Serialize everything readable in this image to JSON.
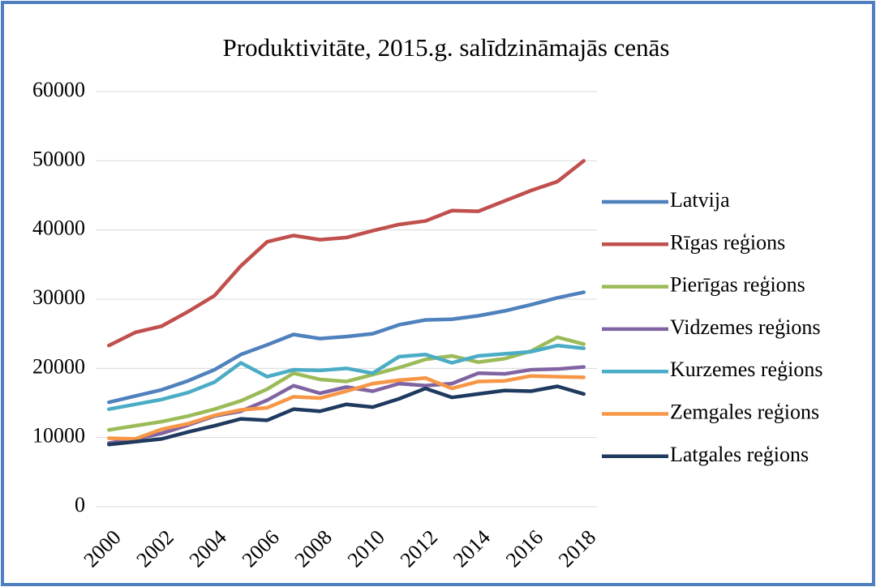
{
  "chart_data": {
    "type": "line",
    "title": "Produktivitāte, 2015.g. salīdzināmajās cenās",
    "categories": [
      "2000",
      null,
      "2002",
      null,
      "2004",
      null,
      "2006",
      null,
      "2008",
      null,
      "2010",
      null,
      "2012",
      null,
      "2014",
      null,
      "2016",
      null,
      "2018"
    ],
    "ylim": [
      0,
      60000
    ],
    "yticks": [
      0,
      10000,
      20000,
      30000,
      40000,
      50000,
      60000
    ],
    "grid": true,
    "legend": "right",
    "series": [
      {
        "name": "Latvija",
        "color": "#4f81bd",
        "values": [
          15100,
          16000,
          16900,
          18200,
          19800,
          22000,
          23400,
          24900,
          24300,
          24600,
          25000,
          26300,
          27000,
          27100,
          27600,
          28300,
          29200,
          30200,
          31000
        ]
      },
      {
        "name": "Rīgas reģions",
        "color": "#c0504d",
        "values": [
          23300,
          25200,
          26100,
          28200,
          30500,
          34800,
          38300,
          39200,
          38600,
          38900,
          39900,
          40800,
          41300,
          42800,
          42700,
          44200,
          45700,
          47000,
          50000
        ]
      },
      {
        "name": "Pierīgas reģions",
        "color": "#9bbb59",
        "values": [
          11100,
          11700,
          12300,
          13100,
          14100,
          15300,
          17000,
          19300,
          18400,
          18100,
          19100,
          20100,
          21300,
          21800,
          20900,
          21400,
          22500,
          24500,
          23500
        ]
      },
      {
        "name": "Vidzemes reģions",
        "color": "#8064a2",
        "values": [
          9200,
          9800,
          10600,
          11800,
          13100,
          13800,
          15400,
          17500,
          16400,
          17300,
          16700,
          17800,
          17500,
          17800,
          19300,
          19200,
          19800,
          19900,
          20200
        ]
      },
      {
        "name": "Kurzemes reģions",
        "color": "#4bacc6",
        "values": [
          14100,
          14800,
          15500,
          16500,
          18000,
          20800,
          18800,
          19800,
          19700,
          20000,
          19300,
          21700,
          22000,
          20800,
          21800,
          22100,
          22400,
          23300,
          22900
        ]
      },
      {
        "name": "Zemgales reģions",
        "color": "#f79646",
        "values": [
          9900,
          9800,
          11200,
          12000,
          13200,
          14000,
          14300,
          15900,
          15700,
          16700,
          17800,
          18300,
          18600,
          17100,
          18100,
          18200,
          18900,
          18800,
          18700
        ]
      },
      {
        "name": "Latgales reģions",
        "color": "#1f3a5f",
        "values": [
          9000,
          9400,
          9800,
          10800,
          11700,
          12700,
          12500,
          14100,
          13800,
          14800,
          14400,
          15600,
          17100,
          15800,
          16300,
          16800,
          16700,
          17400,
          16300
        ]
      }
    ]
  }
}
